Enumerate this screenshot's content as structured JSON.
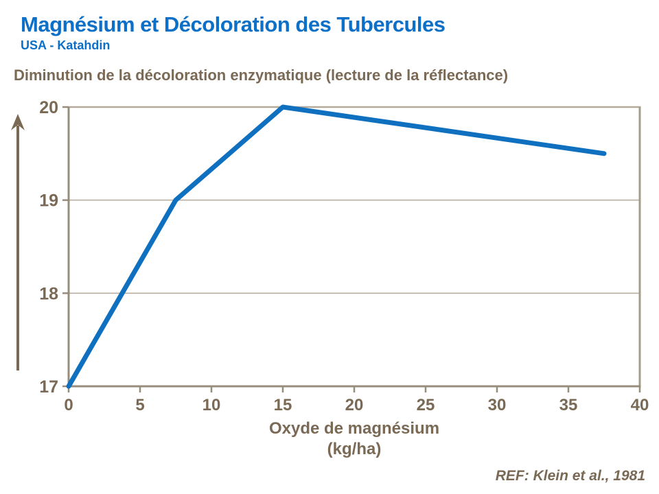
{
  "header": {
    "title": "Magnésium et Décoloration des Tubercules",
    "subtitle": "USA - Katahdin"
  },
  "chart_heading": "Diminution de la décoloration enzymatique (lecture de la réflectance)",
  "axis_title": {
    "line1": "Oxyde de magnésium",
    "line2": "(kg/ha)"
  },
  "ref_note": "REF: Klein et al., 1981",
  "colors": {
    "title_blue": "#0c6fc8",
    "line_blue": "#0f70c0",
    "text_brown": "#7a6a55",
    "grid_light": "#b3aa9b",
    "frame_mid": "#a69c8c",
    "axis_dark": "#978d7c"
  },
  "chart_data": {
    "type": "line",
    "title": "Diminution de la décoloration enzymatique (lecture de la réflectance)",
    "series": [
      {
        "name": "lecture de la réflectance",
        "x": [
          0,
          7.5,
          15,
          37.5
        ],
        "y": [
          17,
          19,
          20,
          19.5
        ]
      }
    ],
    "xlabel": "Oxyde de magnésium (kg/ha)",
    "ylabel": "",
    "xlim": [
      0,
      40
    ],
    "ylim": [
      17,
      20
    ],
    "xticks": [
      0,
      5,
      10,
      15,
      20,
      25,
      30,
      35,
      40
    ],
    "yticks": [
      17,
      18,
      19,
      20
    ],
    "grid": "horizontal",
    "legend": false
  }
}
